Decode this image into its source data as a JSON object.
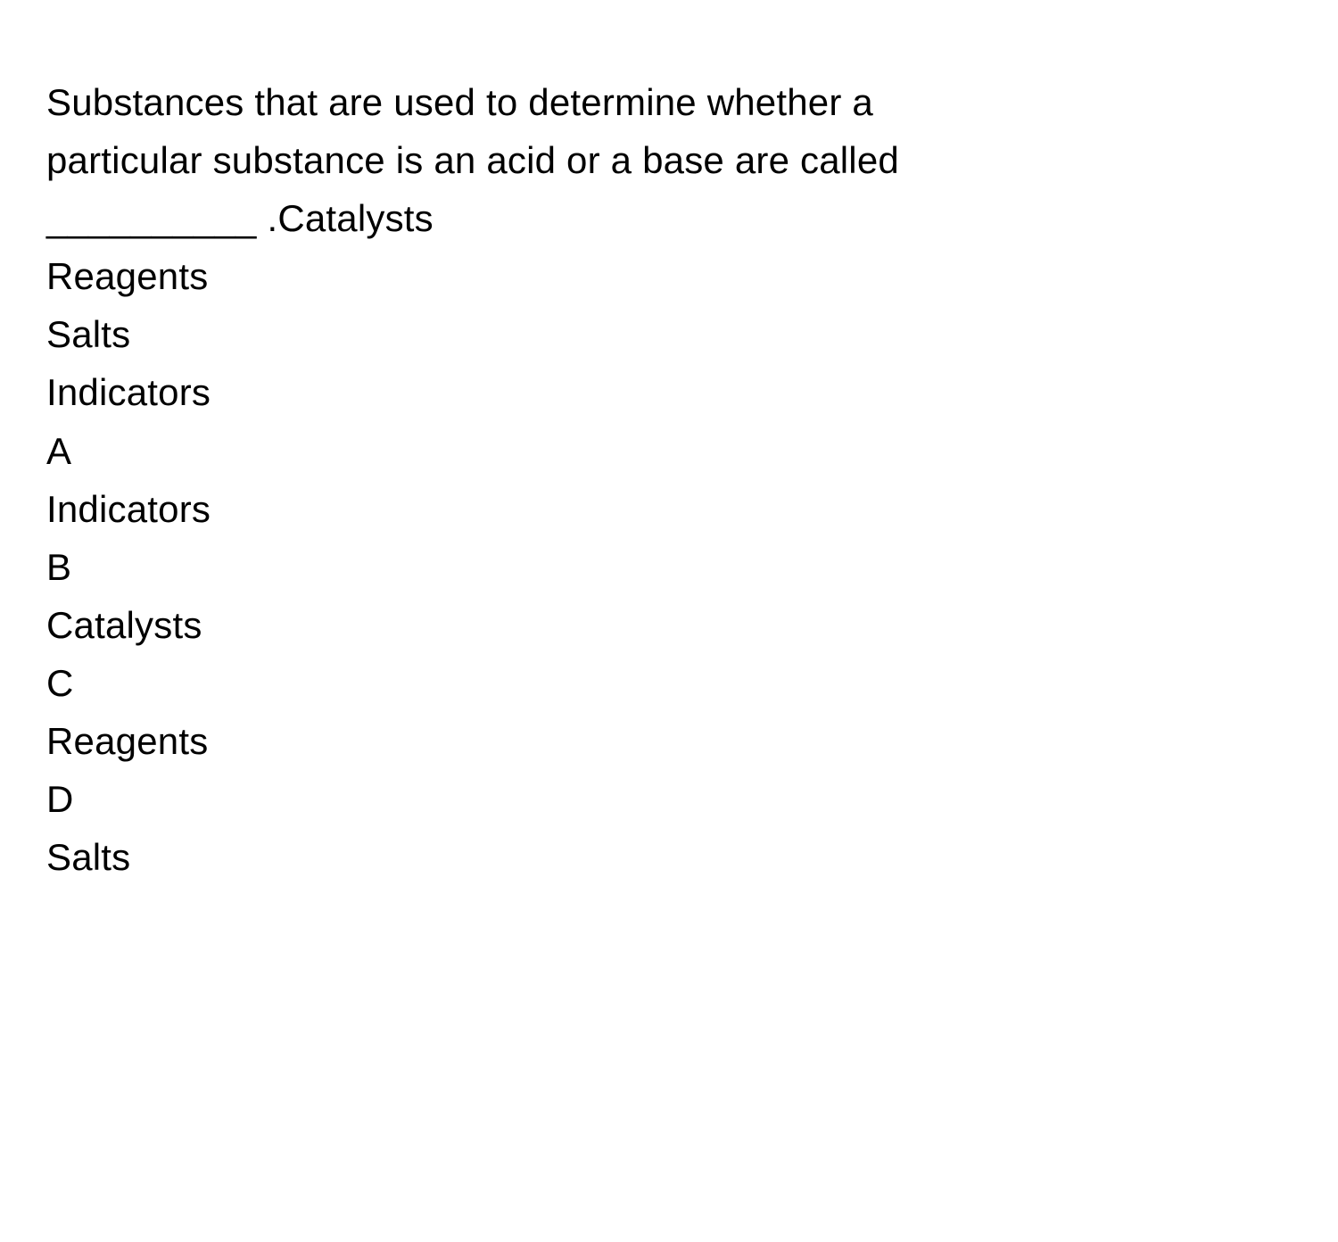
{
  "question": {
    "line1": "Substances that are used to determine whether a",
    "line2": "particular substance is an acid or a base are called",
    "line3": "__________ .Catalysts"
  },
  "choices": {
    "list1": "Reagents",
    "list2": "Salts",
    "list3": "Indicators"
  },
  "options": {
    "a_letter": "A",
    "a_text": "Indicators",
    "b_letter": "B",
    "b_text": "Catalysts",
    "c_letter": "C",
    "c_text": "Reagents",
    "d_letter": "D",
    "d_text": "Salts"
  },
  "styling": {
    "background_color": "#ffffff",
    "text_color": "#000000",
    "font_size": 42,
    "line_height": 1.55,
    "font_weight": 400
  }
}
